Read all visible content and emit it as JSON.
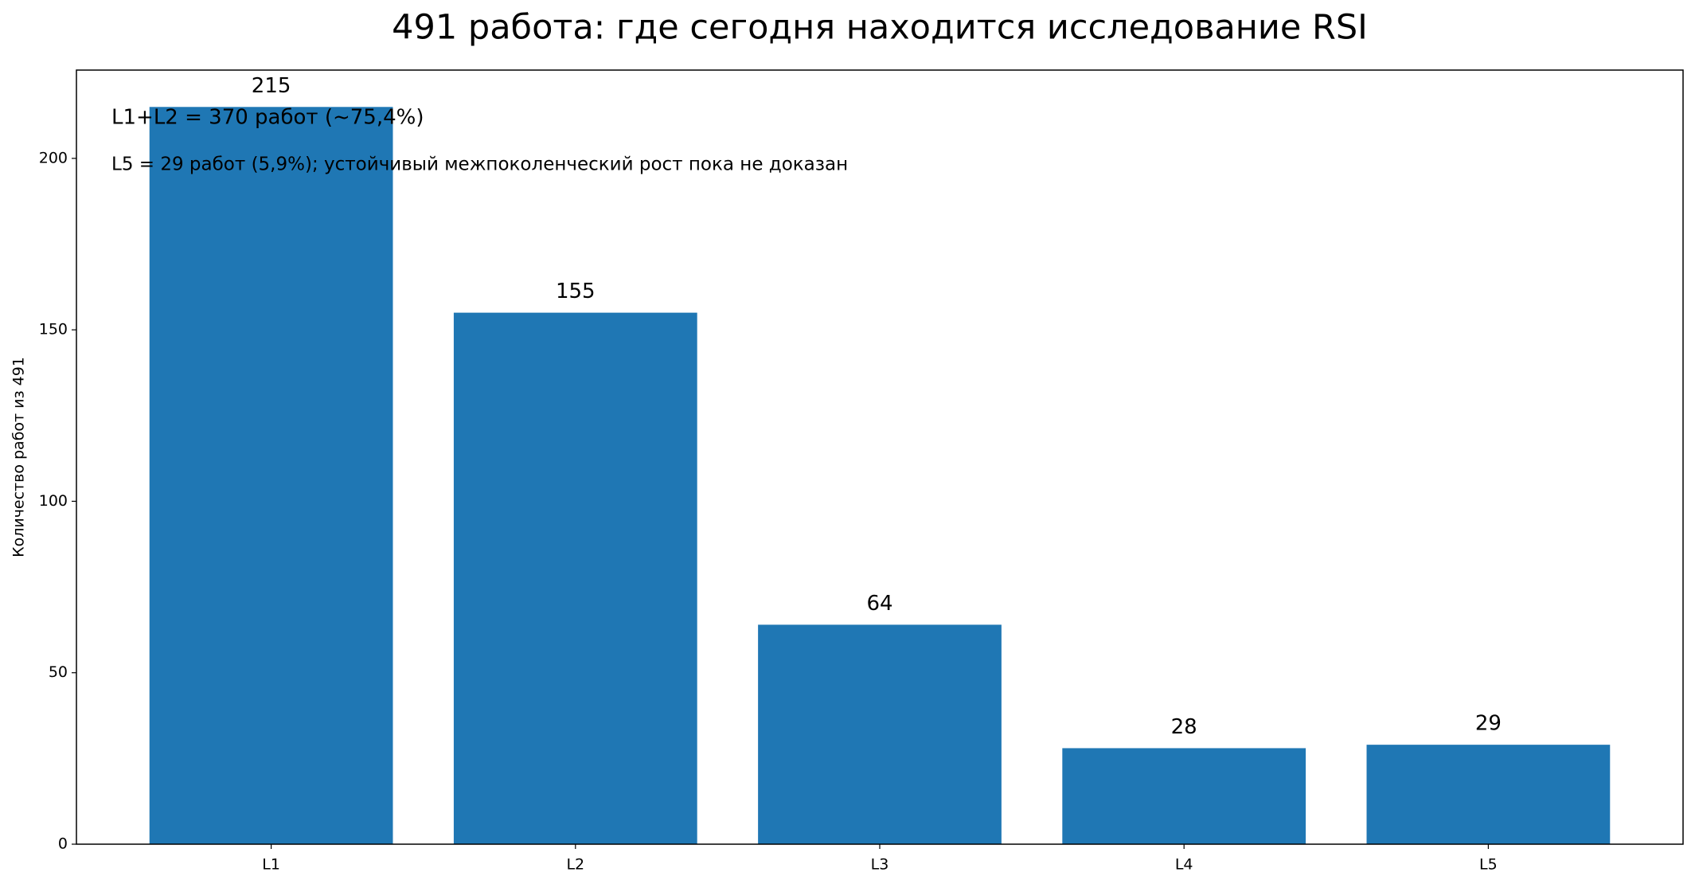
{
  "chart_data": {
    "type": "bar",
    "title": "491 работа: где сегодня находится исследование RSI",
    "y_label": "Количество работ из 491",
    "categories": [
      "L1",
      "L2",
      "L3",
      "L4",
      "L5"
    ],
    "values": [
      215,
      155,
      64,
      28,
      29
    ],
    "color": "#1f77b4",
    "ylim": [
      0,
      225.75
    ],
    "yticks": [
      0,
      50,
      100,
      150,
      200
    ],
    "grid": false,
    "annotations": [
      "L1+L2 = 370 работ (~75,4%)",
      "L5 = 29 работ (5,9%); устойчивый межпоколенческий рост пока не доказан"
    ]
  }
}
